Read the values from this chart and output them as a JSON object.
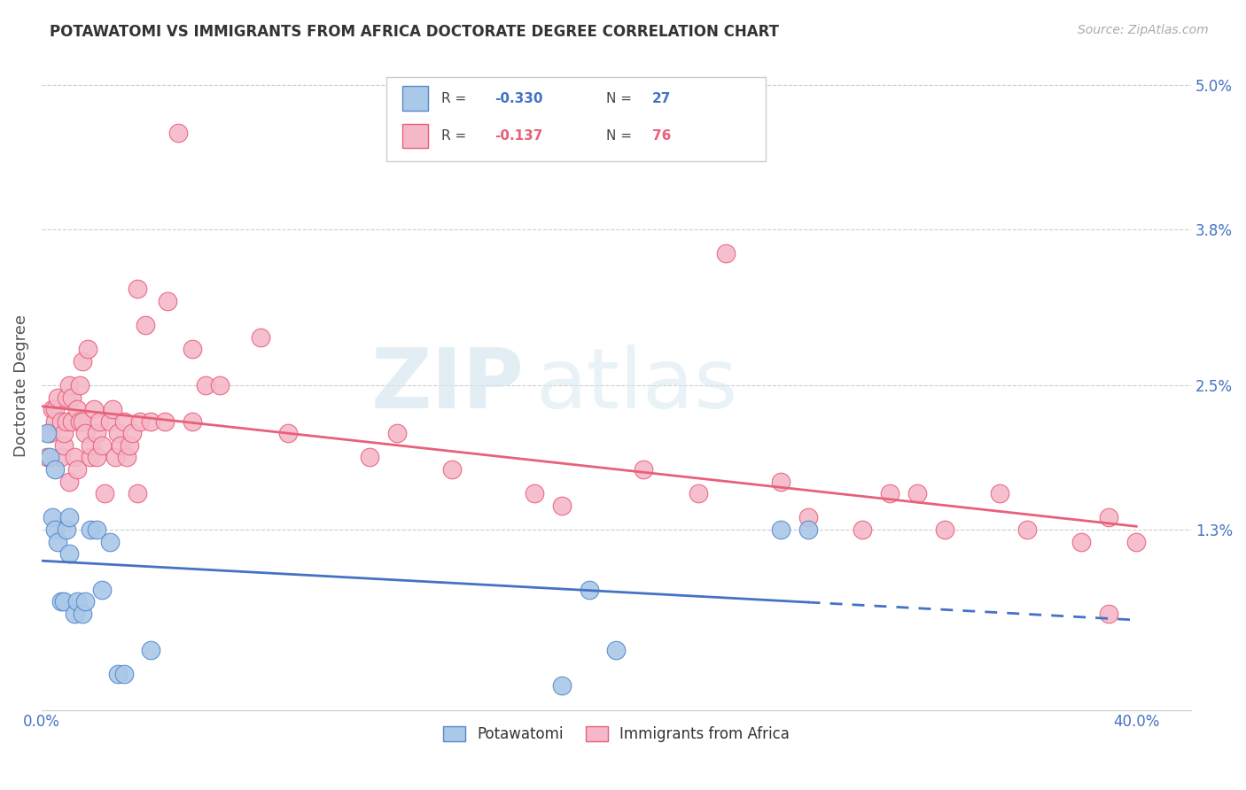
{
  "title": "POTAWATOMI VS IMMIGRANTS FROM AFRICA DOCTORATE DEGREE CORRELATION CHART",
  "source": "Source: ZipAtlas.com",
  "ylabel_label": "Doctorate Degree",
  "xlim": [
    0.0,
    0.42
  ],
  "ylim": [
    -0.002,
    0.052
  ],
  "ytick_vals": [
    0.013,
    0.025,
    0.038,
    0.05
  ],
  "ytick_labels": [
    "1.3%",
    "2.5%",
    "3.8%",
    "5.0%"
  ],
  "xtick_vals": [
    0.0,
    0.4
  ],
  "xtick_labels": [
    "0.0%",
    "40.0%"
  ],
  "blue_R": -0.33,
  "blue_N": 27,
  "pink_R": -0.137,
  "pink_N": 76,
  "blue_color": "#aac8e8",
  "pink_color": "#f5b8c8",
  "blue_edge_color": "#5588cc",
  "pink_edge_color": "#e8607a",
  "blue_line_color": "#4472c4",
  "pink_line_color": "#e8607a",
  "watermark_zip": "ZIP",
  "watermark_atlas": "atlas",
  "legend_label_blue": "Potawatomi",
  "legend_label_pink": "Immigrants from Africa",
  "blue_x": [
    0.002,
    0.003,
    0.004,
    0.005,
    0.005,
    0.006,
    0.007,
    0.008,
    0.009,
    0.01,
    0.01,
    0.012,
    0.013,
    0.015,
    0.016,
    0.018,
    0.02,
    0.022,
    0.025,
    0.028,
    0.03,
    0.04,
    0.19,
    0.2,
    0.21,
    0.27,
    0.28
  ],
  "blue_y": [
    0.021,
    0.019,
    0.014,
    0.013,
    0.018,
    0.012,
    0.007,
    0.007,
    0.013,
    0.014,
    0.011,
    0.006,
    0.007,
    0.006,
    0.007,
    0.013,
    0.013,
    0.008,
    0.012,
    0.001,
    0.001,
    0.003,
    0.0,
    0.008,
    0.003,
    0.013,
    0.013
  ],
  "pink_x": [
    0.002,
    0.003,
    0.004,
    0.005,
    0.005,
    0.006,
    0.007,
    0.007,
    0.008,
    0.008,
    0.009,
    0.009,
    0.01,
    0.01,
    0.011,
    0.011,
    0.012,
    0.013,
    0.013,
    0.014,
    0.014,
    0.015,
    0.015,
    0.016,
    0.017,
    0.018,
    0.018,
    0.019,
    0.02,
    0.02,
    0.021,
    0.022,
    0.023,
    0.025,
    0.026,
    0.027,
    0.028,
    0.029,
    0.03,
    0.031,
    0.032,
    0.033,
    0.035,
    0.036,
    0.038,
    0.04,
    0.045,
    0.05,
    0.055,
    0.055,
    0.06,
    0.065,
    0.08,
    0.09,
    0.12,
    0.13,
    0.15,
    0.18,
    0.19,
    0.22,
    0.24,
    0.25,
    0.27,
    0.28,
    0.3,
    0.31,
    0.32,
    0.33,
    0.35,
    0.36,
    0.38,
    0.39,
    0.39,
    0.4,
    0.035,
    0.046
  ],
  "pink_y": [
    0.019,
    0.021,
    0.023,
    0.022,
    0.023,
    0.024,
    0.019,
    0.022,
    0.02,
    0.021,
    0.024,
    0.022,
    0.017,
    0.025,
    0.024,
    0.022,
    0.019,
    0.023,
    0.018,
    0.025,
    0.022,
    0.022,
    0.027,
    0.021,
    0.028,
    0.019,
    0.02,
    0.023,
    0.019,
    0.021,
    0.022,
    0.02,
    0.016,
    0.022,
    0.023,
    0.019,
    0.021,
    0.02,
    0.022,
    0.019,
    0.02,
    0.021,
    0.016,
    0.022,
    0.03,
    0.022,
    0.022,
    0.046,
    0.022,
    0.028,
    0.025,
    0.025,
    0.029,
    0.021,
    0.019,
    0.021,
    0.018,
    0.016,
    0.015,
    0.018,
    0.016,
    0.036,
    0.017,
    0.014,
    0.013,
    0.016,
    0.016,
    0.013,
    0.016,
    0.013,
    0.012,
    0.014,
    0.006,
    0.012,
    0.033,
    0.032
  ]
}
